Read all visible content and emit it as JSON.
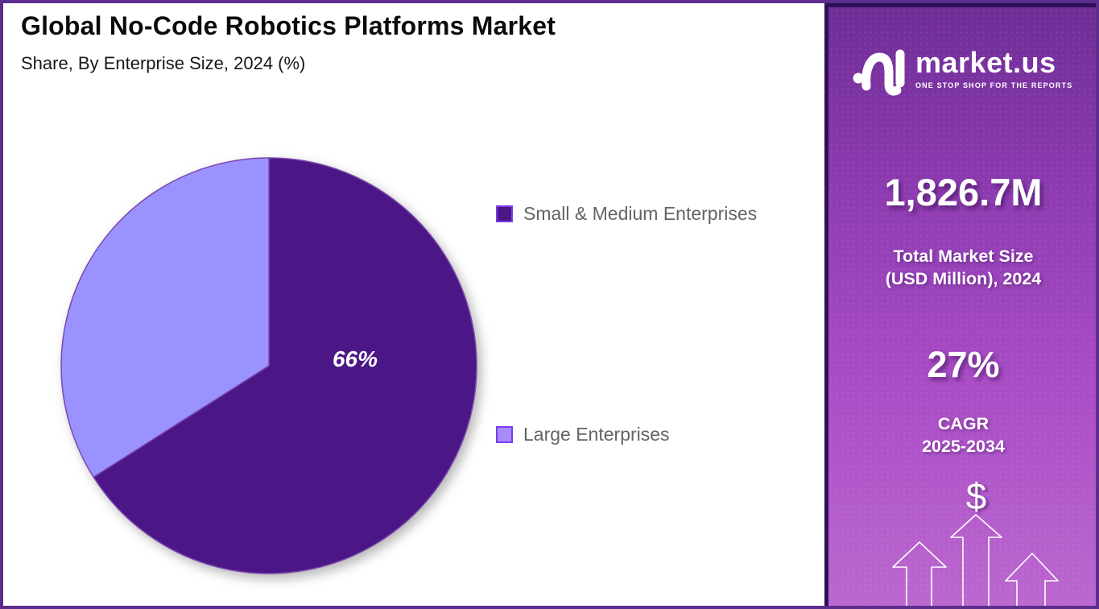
{
  "header": {
    "title": "Global No-Code Robotics Platforms Market",
    "subtitle": "Share, By Enterprise Size, 2024 (%)"
  },
  "chart_data": {
    "type": "pie",
    "title": "Global No-Code Robotics Platforms Market Share, By Enterprise Size, 2024 (%)",
    "unit": "%",
    "start_angle": "top",
    "direction": "clockwise",
    "legend_position": "right",
    "legend_border": "#7C3AED",
    "slices": [
      {
        "label": "Small & Medium Enterprises",
        "value": 66,
        "data_label": "66%",
        "color": "#4B1786",
        "legend_fill": "#4B1786"
      },
      {
        "label": "Large Enterprises",
        "value": 34,
        "data_label": "",
        "color": "#9A92FF",
        "legend_fill": "#A78BFA"
      }
    ]
  },
  "sidebar": {
    "logo": {
      "brand": "market.us",
      "tagline": "ONE STOP SHOP FOR THE REPORTS"
    },
    "market_size_value": "1,826.7M",
    "market_size_label_line1": "Total Market Size",
    "market_size_label_line2": "(USD Million), 2024",
    "cagr_value": "27%",
    "cagr_label_line1": "CAGR",
    "cagr_label_line2": "2025-2034",
    "dollar_symbol": "$"
  },
  "colors": {
    "slice_dark_purple": "#4B1786",
    "slice_light_purple": "#9A92FF",
    "slice_stroke": "#7D47AD",
    "outer_border": "#5B2D8E",
    "sidebar_border": "#2E1058",
    "sidebar_gradient_top": "#6E2D96",
    "sidebar_gradient_bottom": "#BB68CF",
    "legend_text": "#646464",
    "pie_label_text": "#FFFFFF"
  }
}
